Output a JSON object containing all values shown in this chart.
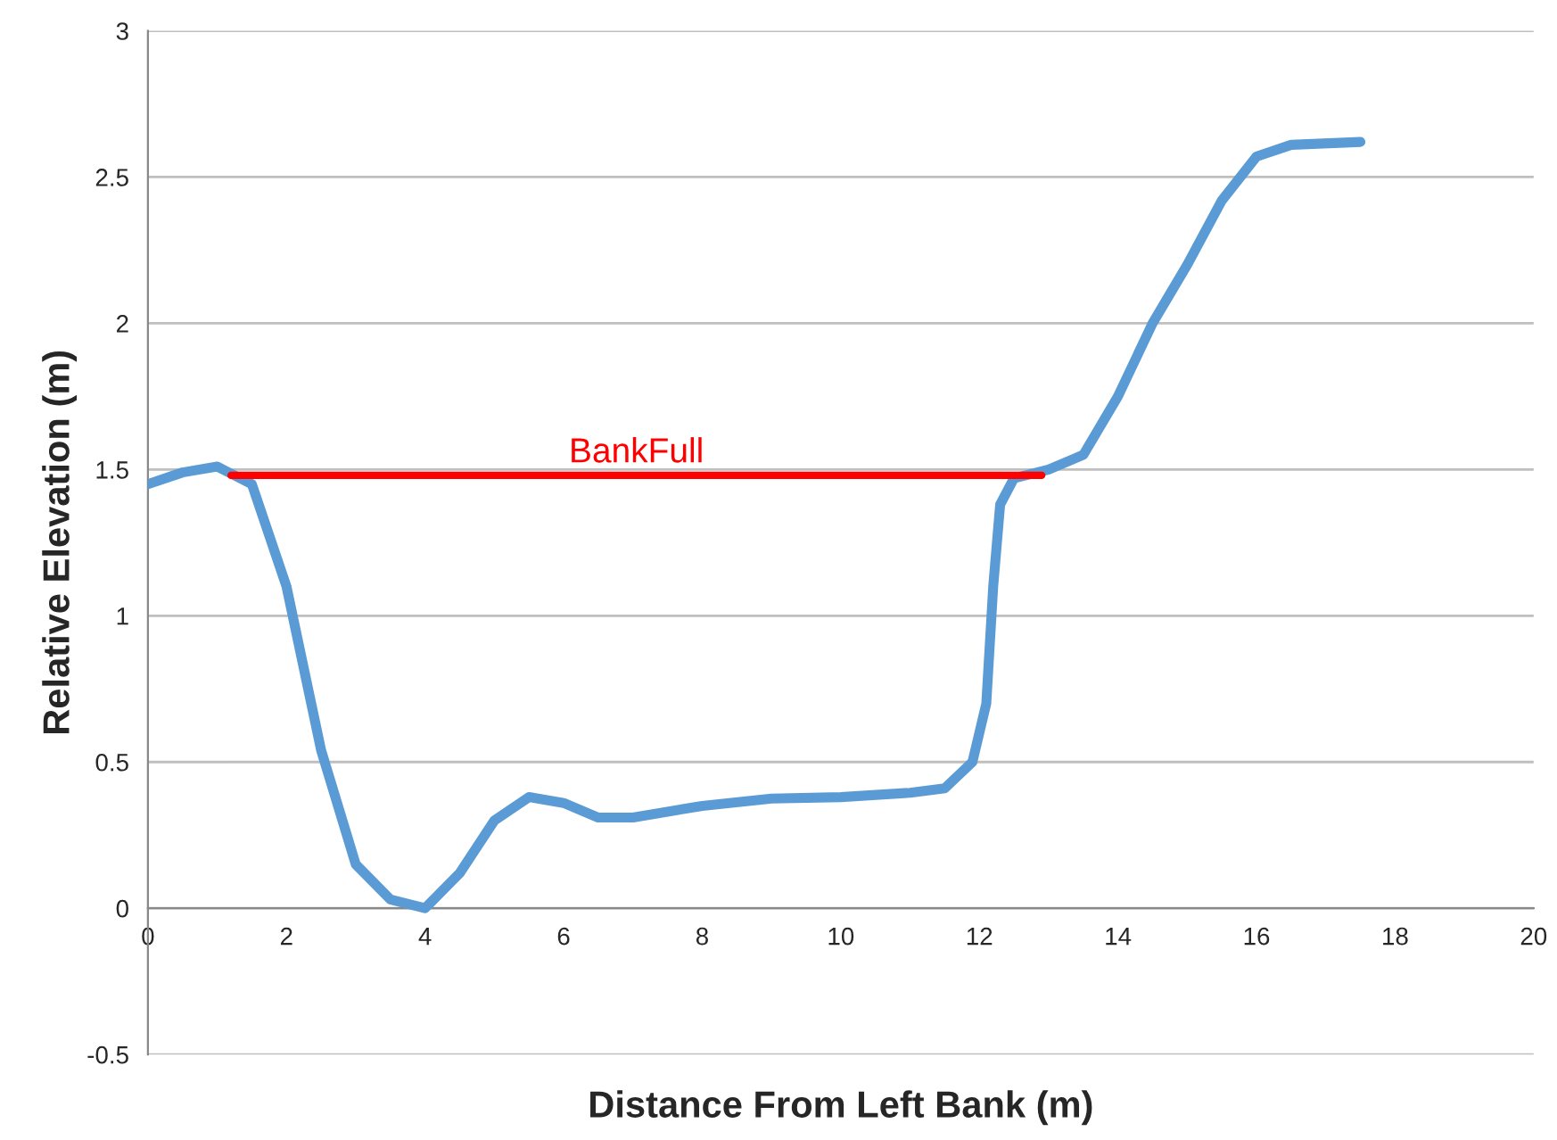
{
  "chart_data": {
    "type": "line",
    "xlabel": "Distance From Left Bank (m)",
    "ylabel": "Relative Elevation (m)",
    "xlim": [
      0,
      20
    ],
    "xticks": [
      0,
      2,
      4,
      6,
      8,
      10,
      12,
      14,
      16,
      18,
      20
    ],
    "ylim": [
      -0.5,
      3
    ],
    "yticks": [
      -0.5,
      0,
      0.5,
      1,
      1.5,
      2,
      2.5,
      3
    ],
    "grid": "y",
    "marker": "none",
    "line_style": "solid",
    "legend": false,
    "series": [
      {
        "color": "#5b9bd5",
        "x": [
          0,
          0.5,
          1,
          1.5,
          2,
          2.5,
          3,
          3.5,
          4,
          4.5,
          5,
          5.5,
          6,
          6.5,
          7,
          8,
          9,
          10,
          11,
          11.5,
          11.9,
          12.1,
          12.2,
          12.3,
          12.5,
          13,
          13.5,
          14,
          14.5,
          15,
          15.5,
          16,
          16.5,
          17.5
        ],
        "values": [
          1.45,
          1.49,
          1.51,
          1.45,
          1.1,
          0.54,
          0.15,
          0.03,
          0,
          0.12,
          0.3,
          0.38,
          0.36,
          0.31,
          0.31,
          0.35,
          0.375,
          0.38,
          0.395,
          0.41,
          0.5,
          0.7,
          1.1,
          1.38,
          1.47,
          1.5,
          1.55,
          1.75,
          2.0,
          2.2,
          2.42,
          2.57,
          2.61,
          2.62
        ]
      },
      {
        "name": "BankFull",
        "color": "#ff0000",
        "x": [
          1.2,
          12.9
        ],
        "values": [
          1.48,
          1.48
        ]
      }
    ]
  }
}
